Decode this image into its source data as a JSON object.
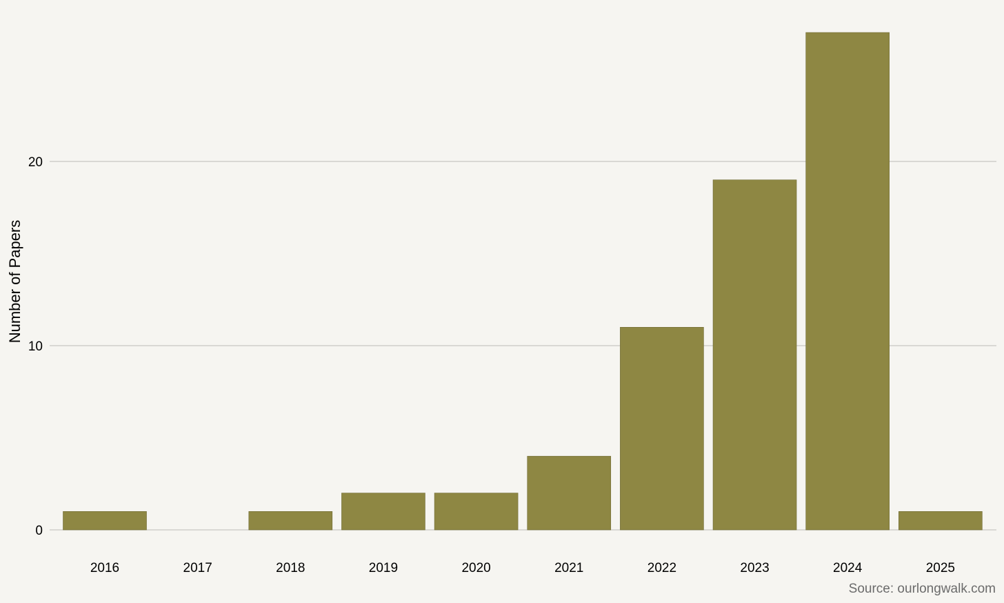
{
  "chart_data": {
    "type": "bar",
    "categories": [
      "2016",
      "2017",
      "2018",
      "2019",
      "2020",
      "2021",
      "2022",
      "2023",
      "2024",
      "2025"
    ],
    "values": [
      1,
      0,
      1,
      2,
      2,
      4,
      11,
      19,
      27,
      1
    ],
    "title": "",
    "xlabel": "",
    "ylabel": "Number of Papers",
    "ylim": [
      0,
      27
    ],
    "yticks": [
      0,
      10,
      20
    ],
    "grid": true,
    "bar_color": "#8e8743",
    "source": "Source: ourlongwalk.com"
  }
}
